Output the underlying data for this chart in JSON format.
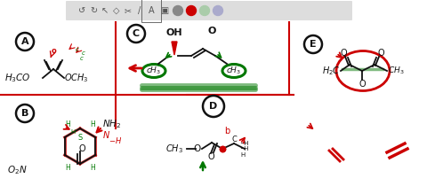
{
  "bg_color": "#ffffff",
  "toolbar_bg": "#d8d8d8",
  "sections": [
    "A",
    "B",
    "C",
    "D",
    "E"
  ],
  "red": "#cc0000",
  "green": "#007700",
  "black": "#111111"
}
